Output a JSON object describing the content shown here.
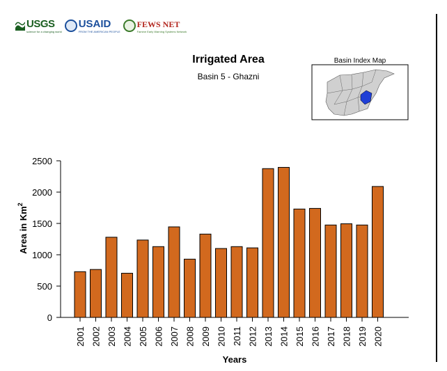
{
  "logos": {
    "usgs": {
      "name": "USGS",
      "tagline": "science for a changing world"
    },
    "usaid": {
      "name": "USAID",
      "tagline": "FROM THE AMERICAN PEOPLE"
    },
    "fews": {
      "name": "FEWS NET",
      "tagline": "Famine Early Warning Systems Network"
    }
  },
  "inset": {
    "title": "Basin Index Map"
  },
  "colors": {
    "bar": "#D2691E",
    "bar_stroke": "#000000",
    "highlight_basin": "#1f3fd6",
    "map_fill": "#d0d0d0"
  },
  "chart_data": {
    "type": "bar",
    "title": "Irrigated Area",
    "subtitle": "Basin 5 - Ghazni",
    "xlabel": "Years",
    "ylabel": "Area in Km",
    "ylabel_superscript": "2",
    "categories": [
      "2001",
      "2002",
      "2003",
      "2004",
      "2005",
      "2006",
      "2007",
      "2008",
      "2009",
      "2010",
      "2011",
      "2012",
      "2013",
      "2014",
      "2015",
      "2016",
      "2017",
      "2018",
      "2019",
      "2020"
    ],
    "values": [
      730,
      765,
      1280,
      705,
      1235,
      1130,
      1445,
      930,
      1330,
      1100,
      1130,
      1110,
      2375,
      2395,
      1730,
      1740,
      1475,
      1495,
      1475,
      2090
    ],
    "ylim": [
      0,
      2500
    ],
    "yticks": [
      0,
      500,
      1000,
      1500,
      2000,
      2500
    ],
    "grid": false,
    "legend": "none"
  }
}
